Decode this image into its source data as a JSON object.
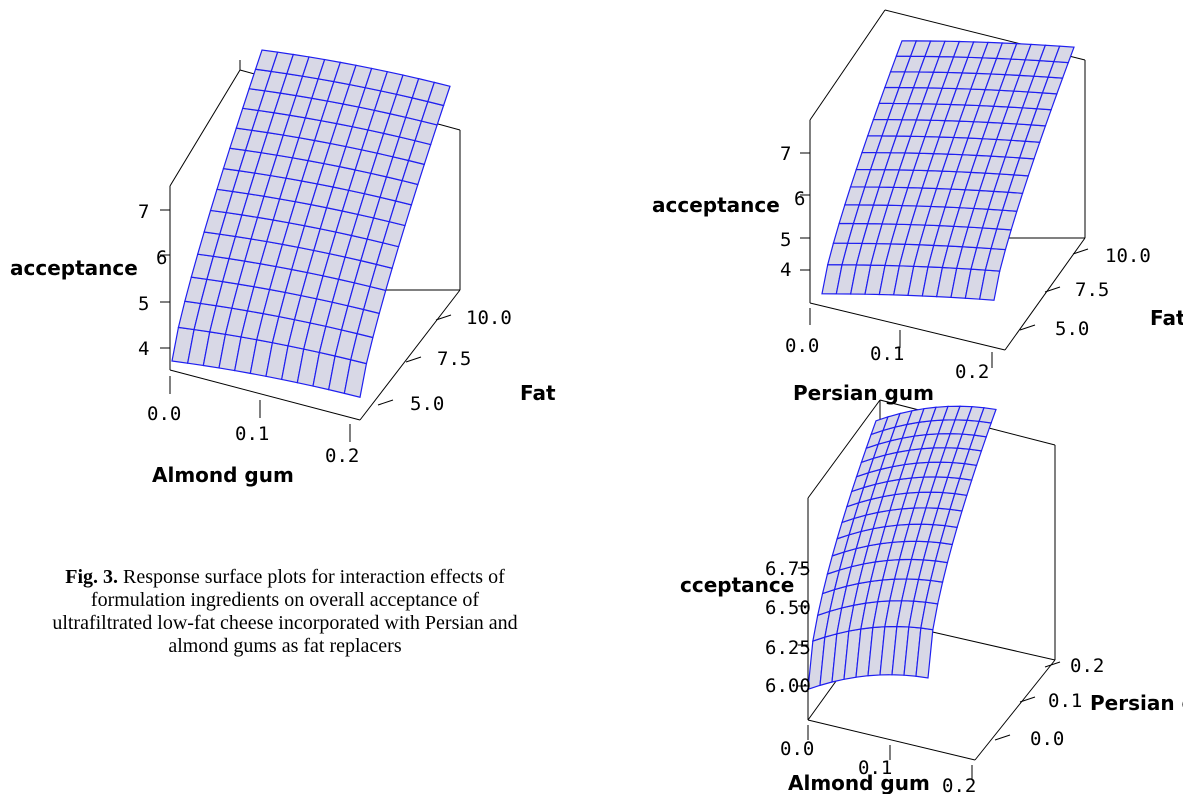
{
  "chart_data": [
    {
      "type": "surface",
      "zlabel": "acceptance",
      "xlabel": "Almond gum",
      "ylabel": "Fat",
      "x_ticks": [
        "0.0",
        "0.1",
        "0.2"
      ],
      "y_ticks": [
        "5.0",
        "7.5",
        "10.0"
      ],
      "z_ticks": [
        "4",
        "5",
        "6",
        "7"
      ],
      "xlim": [
        0,
        0.2
      ],
      "ylim": [
        2.5,
        10
      ],
      "zlim": [
        3.5,
        7.5
      ],
      "surface_color": "#1f1ff0",
      "description_values": {
        "acceptance_at_fat_min": 3.7,
        "acceptance_at_fat_max": 7.5
      }
    },
    {
      "type": "surface",
      "zlabel": "acceptance",
      "xlabel": "Persian gum",
      "ylabel": "Fat",
      "x_ticks": [
        "0.0",
        "0.1",
        "0.2"
      ],
      "y_ticks": [
        "5.0",
        "7.5",
        "10.0"
      ],
      "z_ticks": [
        "4",
        "5",
        "6",
        "7"
      ],
      "xlim": [
        0,
        0.2
      ],
      "ylim": [
        2.5,
        10
      ],
      "zlim": [
        3.5,
        7.5
      ],
      "surface_color": "#1f1ff0",
      "description_values": {
        "acceptance_at_fat_min": 3.6,
        "acceptance_at_fat_max": 7.6
      }
    },
    {
      "type": "surface",
      "zlabel": "cceptance",
      "xlabel": "Almond gum",
      "ylabel": "Persian gum",
      "x_ticks": [
        "0.0",
        "0.1",
        "0.2"
      ],
      "y_ticks": [
        "0.0",
        "0.1",
        "0.2"
      ],
      "z_ticks": [
        "6.00",
        "6.25",
        "6.50",
        "6.75"
      ],
      "xlim": [
        0,
        0.2
      ],
      "ylim": [
        0,
        0.2
      ],
      "zlim": [
        6.0,
        7.0
      ],
      "surface_color": "#1f1ff0",
      "description_values": {
        "acceptance_min": 6.0,
        "acceptance_max": 7.0
      }
    }
  ],
  "caption": {
    "label": "Fig. 3.",
    "text": " Response surface plots for interaction effects of formulation ingredients on overall acceptance of ultrafiltrated low-fat cheese incorporated with Persian and almond gums as fat replacers"
  }
}
